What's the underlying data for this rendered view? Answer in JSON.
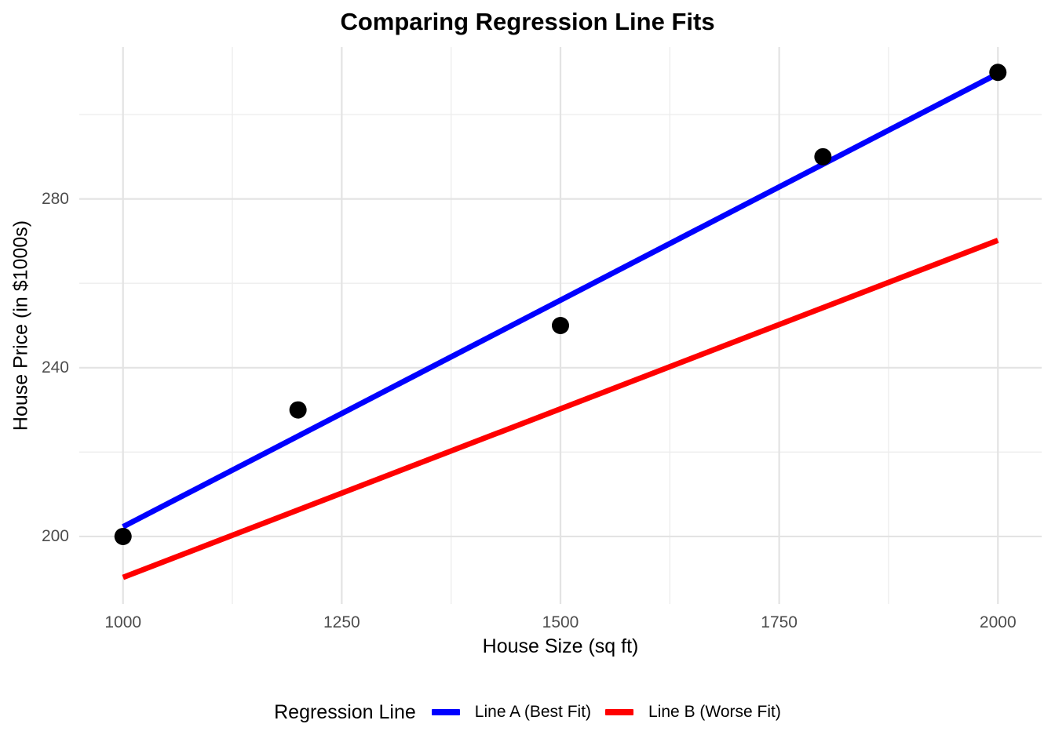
{
  "chart_data": {
    "type": "scatter",
    "title": "Comparing Regression Line Fits",
    "xlabel": "House Size (sq ft)",
    "ylabel": "House Price (in $1000s)",
    "points": {
      "name": "observed-houses",
      "color": "#000000",
      "x": [
        1000,
        1200,
        1500,
        1800,
        2000
      ],
      "y": [
        200,
        230,
        250,
        290,
        310
      ]
    },
    "series": [
      {
        "name": "Line A (Best Fit)",
        "type": "line",
        "color": "#0000FF",
        "x": [
          1000,
          2000
        ],
        "y": [
          202.3,
          309.7
        ]
      },
      {
        "name": "Line B (Worse Fit)",
        "type": "line",
        "color": "#FF0000",
        "x": [
          1000,
          2000
        ],
        "y": [
          190.3,
          270.2
        ]
      }
    ],
    "x_ticks": [
      1000,
      1250,
      1500,
      1750,
      2000
    ],
    "y_ticks": [
      200,
      240,
      280
    ],
    "x_minor_ticks": [
      1125,
      1375,
      1625,
      1875
    ],
    "y_minor_ticks": [
      220,
      260,
      300
    ],
    "xlim": [
      950,
      2050
    ],
    "ylim": [
      184,
      316
    ],
    "grid": "on",
    "legend": {
      "title": "Regression Line",
      "position": "bottom"
    },
    "colors": {
      "background": "#FFFFFF",
      "grid_major": "#E3E3E3",
      "grid_minor": "#EDEDED",
      "axis_text": "#4D4D4D",
      "title_text": "#000000",
      "point": "#000000"
    }
  }
}
